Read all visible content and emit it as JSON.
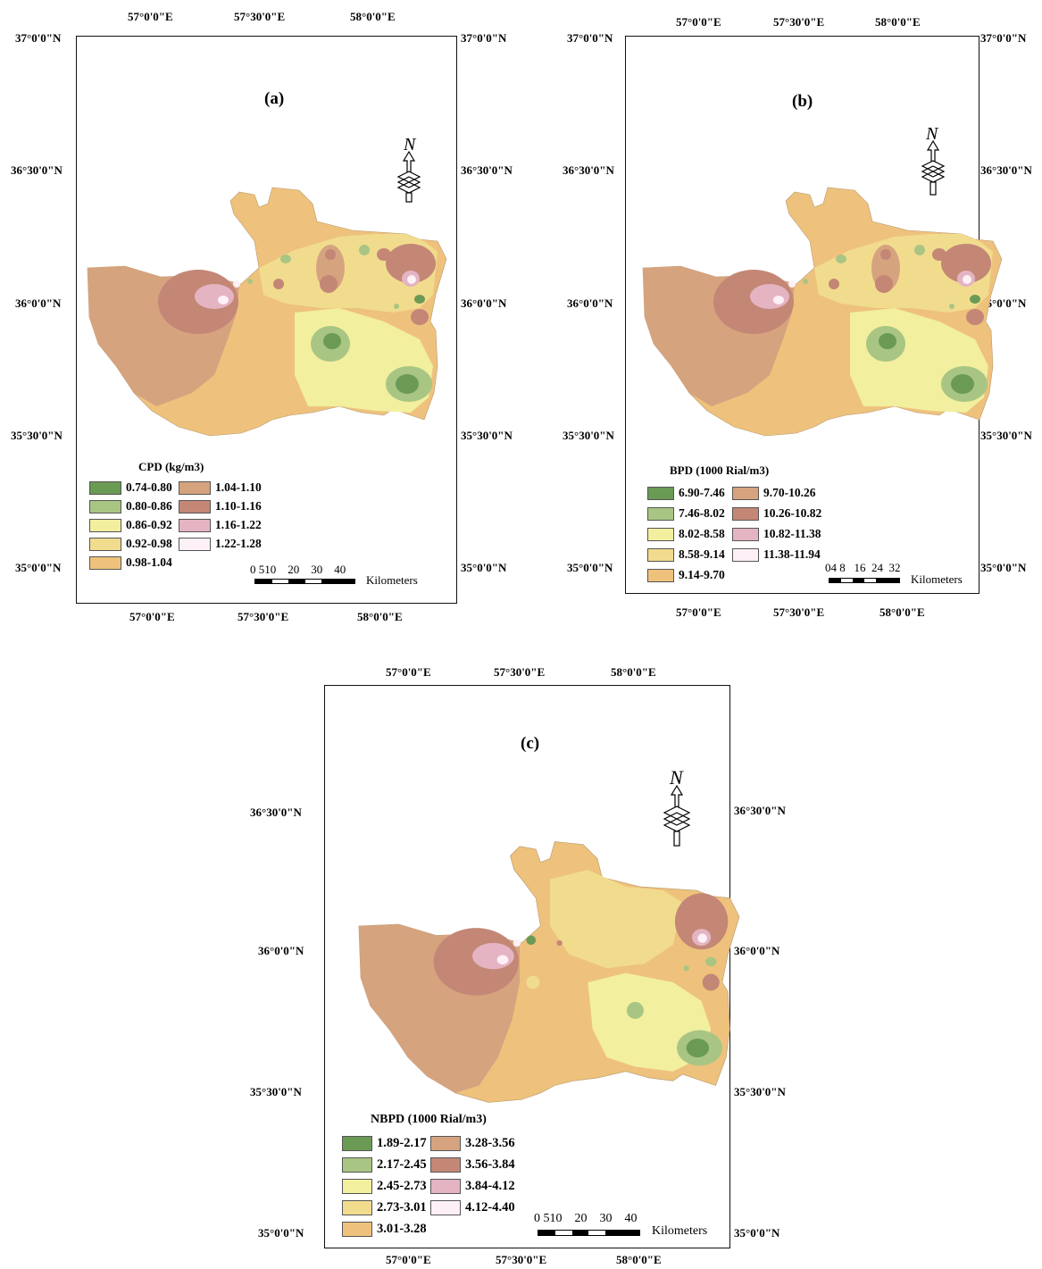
{
  "panels": [
    {
      "id": "a",
      "title": "(a)",
      "legend_title": "CPD (kg/m3)",
      "classes": [
        "0.74-0.80",
        "0.80-0.86",
        "0.86-0.92",
        "0.92-0.98",
        "0.98-1.04",
        "1.04-1.10",
        "1.10-1.16",
        "1.16-1.22",
        "1.22-1.28"
      ],
      "scale_labels": [
        "0",
        "5",
        "10",
        "20",
        "30",
        "40"
      ],
      "scale_unit": "Kilometers",
      "top_lon": [
        "57°0'0\"E",
        "57°30'0\"E",
        "58°0'0\"E"
      ],
      "bottom_lon": [
        "57°0'0\"E",
        "57°30'0\"E",
        "58°0'0\"E"
      ],
      "left_lat": [
        "37°0'0\"N",
        "36°30'0\"N",
        "36°0'0\"N",
        "35°30'0\"N",
        "35°0'0\"N"
      ],
      "right_lat": [
        "37°0'0\"N",
        "36°30'0\"N",
        "36°0'0\"N",
        "35°30'0\"N",
        "35°0'0\"N"
      ]
    },
    {
      "id": "b",
      "title": "(b)",
      "legend_title": "BPD (1000 Rial/m3)",
      "classes": [
        "6.90-7.46",
        "7.46-8.02",
        "8.02-8.58",
        "8.58-9.14",
        "9.14-9.70",
        "9.70-10.26",
        "10.26-10.82",
        "10.82-11.38",
        "11.38-11.94"
      ],
      "scale_labels": [
        "0",
        "4",
        "8",
        "16",
        "24",
        "32"
      ],
      "scale_unit": "Kilometers",
      "top_lon": [
        "57°0'0\"E",
        "57°30'0\"E",
        "58°0'0\"E"
      ],
      "bottom_lon": [
        "57°0'0\"E",
        "57°30'0\"E",
        "58°0'0\"E"
      ],
      "left_lat": [
        "37°0'0\"N",
        "36°30'0\"N",
        "36°0'0\"N",
        "35°30'0\"N",
        "35°0'0\"N"
      ],
      "right_lat": [
        "37°0'0\"N",
        "36°30'0\"N",
        "36°0'0\"N",
        "35°30'0\"N",
        "35°0'0\"N"
      ]
    },
    {
      "id": "c",
      "title": "(c)",
      "legend_title": "NBPD (1000 Rial/m3)",
      "classes": [
        "1.89-2.17",
        "2.17-2.45",
        "2.45-2.73",
        "2.73-3.01",
        "3.01-3.28",
        "3.28-3.56",
        "3.56-3.84",
        "3.84-4.12",
        "4.12-4.40"
      ],
      "scale_labels": [
        "0",
        "5",
        "10",
        "20",
        "30",
        "40"
      ],
      "scale_unit": "Kilometers",
      "top_lon": [
        "57°0'0\"E",
        "57°30'0\"E",
        "58°0'0\"E"
      ],
      "bottom_lon": [
        "57°0'0\"E",
        "57°30'0\"E",
        "58°0'0\"E"
      ],
      "left_lat": [
        "36°30'0\"N",
        "36°0'0\"N",
        "35°30'0\"N",
        "35°0'0\"N"
      ],
      "right_lat": [
        "36°30'0\"N",
        "36°0'0\"N",
        "35°30'0\"N",
        "35°0'0\"N"
      ]
    }
  ],
  "north_label": "N",
  "class_colors": [
    "#6b9a55",
    "#a9c583",
    "#f2ef9f",
    "#f1dc8e",
    "#eec27c",
    "#d6a37f",
    "#c48776",
    "#e4b4c2",
    "#fdf0f6"
  ]
}
